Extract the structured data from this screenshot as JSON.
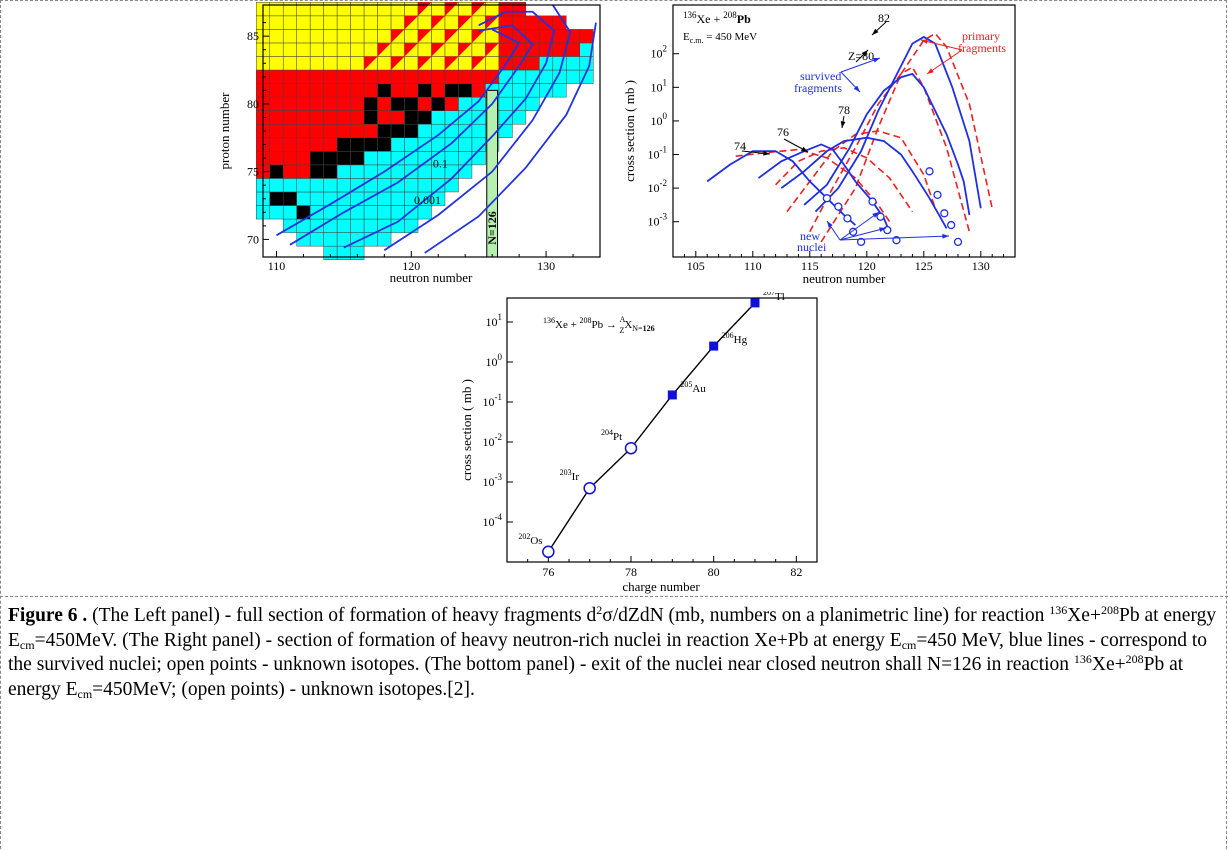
{
  "left_panel": {
    "xlabel": "neutron number",
    "ylabel": "proton  number",
    "x_ticks": [
      110,
      120,
      130
    ],
    "y_ticks": [
      70,
      75,
      80,
      85
    ],
    "contour_labels": [
      "0.1",
      "0.001"
    ],
    "n126_label": "N=126",
    "colors": {
      "yellow": "#ffff00",
      "red": "#ff0000",
      "cyan": "#00ffff",
      "black": "#000000",
      "contour": "#2233dd",
      "n126_band": "#b6f0b0"
    }
  },
  "right_panel": {
    "reaction_a": "136",
    "reaction_b": "Xe + ",
    "reaction_c": "208",
    "reaction_d": "Pb",
    "energy": "E",
    "energy_sub": "c.m.",
    "energy_val": " = 450 MeV",
    "xlabel": "neutron  number",
    "ylabel": "cross  section  ( mb )",
    "x_ticks": [
      "105",
      "110",
      "115",
      "120",
      "125",
      "130"
    ],
    "y_ticks": [
      {
        "base": "10",
        "exp": "2"
      },
      {
        "base": "10",
        "exp": "1"
      },
      {
        "base": "10",
        "exp": "0"
      },
      {
        "base": "10",
        "exp": "-1"
      },
      {
        "base": "10",
        "exp": "-2"
      },
      {
        "base": "10",
        "exp": "-3"
      }
    ],
    "curve_labels": [
      "82",
      "Z=80",
      "78",
      "76",
      "74"
    ],
    "survived_label": [
      "survived",
      "fragments"
    ],
    "primary_label": [
      "primary",
      "fragments"
    ],
    "new_nuclei_label": [
      "new",
      "nuclei"
    ],
    "colors": {
      "survived": "#1f2fe0",
      "primary": "#ee2020"
    }
  },
  "chart_data": {
    "type": "line",
    "title": "",
    "reaction": {
      "a": "136",
      "b": "Xe + ",
      "c": "208",
      "d": "Pb → ",
      "e": "A",
      "f": "Z",
      "g": "X",
      "h": "N=",
      "i": "126"
    },
    "xlabel": "charge number",
    "ylabel": "cross  section  ( mb )",
    "x_ticks": [
      "76",
      "78",
      "80",
      "82"
    ],
    "y_ticks": [
      {
        "base": "10",
        "exp": "1"
      },
      {
        "base": "10",
        "exp": "0"
      },
      {
        "base": "10",
        "exp": "-1"
      },
      {
        "base": "10",
        "exp": "-2"
      },
      {
        "base": "10",
        "exp": "-3"
      },
      {
        "base": "10",
        "exp": "-4"
      }
    ],
    "xlim": [
      75,
      82.5
    ],
    "ylim_log10": [
      -5,
      1.6
    ],
    "y_scale": "log",
    "points": [
      {
        "x": 76,
        "y": 1.8e-05,
        "mass": "202",
        "element": "Os",
        "open": true
      },
      {
        "x": 77,
        "y": 0.0007,
        "mass": "203",
        "element": "Ir",
        "open": true
      },
      {
        "x": 78,
        "y": 0.007,
        "mass": "204",
        "element": "Pt",
        "open": true
      },
      {
        "x": 79,
        "y": 0.15,
        "mass": "205",
        "element": "Au",
        "open": false
      },
      {
        "x": 80,
        "y": 2.5,
        "mass": "206",
        "element": "Hg",
        "open": false
      },
      {
        "x": 81,
        "y": 30,
        "mass": "207",
        "element": "Tl",
        "open": false
      }
    ],
    "colors": {
      "marker": "#1010dd",
      "line": "#000000"
    }
  },
  "caption": {
    "label": "Figure 6 .",
    "t1": "   (The Left panel) - full section of formation of heavy fragments d",
    "s1": "2",
    "t2": "σ/dZdN (mb, numbers on a planimetric line) for reaction ",
    "s2": "136",
    "t3": "Xe+",
    "s3": "208",
    "t4": "Pb at energy E",
    "b1": "cm",
    "t5": "=450MeV. (The Right panel) - section of formation of heavy neutron-rich nuclei in reaction Xe+Pb at energy E",
    "b2": "cm",
    "t6": "=450 MeV, blue lines - correspond to the survived nuclei; open points - unknown isotopes. (The bottom panel) - exit of the nuclei near closed neutron shall N=126 in reaction ",
    "s4": "136",
    "t7": "Xe+",
    "s5": "208",
    "t8": "Pb at energy E",
    "b3": "cm",
    "t9": "=450MeV; (open points) - unknown isotopes.[2]."
  }
}
